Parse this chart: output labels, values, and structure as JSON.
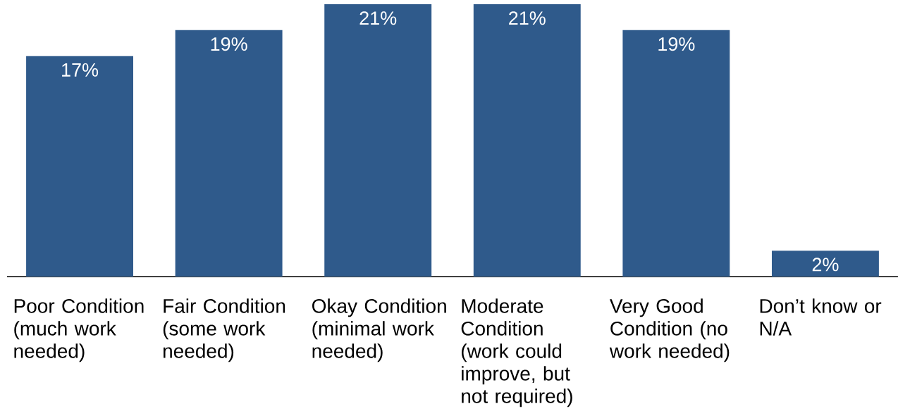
{
  "chart_data": {
    "type": "bar",
    "categories": [
      "Poor Condition (much work needed)",
      "Fair Condition (some work needed)",
      "Okay Condition (minimal work needed)",
      "Moderate Condition (work could improve, but not required)",
      "Very Good Condition (no work needed)",
      "Don’t know or N/A"
    ],
    "values": [
      17,
      19,
      21,
      21,
      19,
      2
    ],
    "value_labels": [
      "17%",
      "19%",
      "21%",
      "21%",
      "19%",
      "2%"
    ],
    "color": "#2f5a8b"
  }
}
